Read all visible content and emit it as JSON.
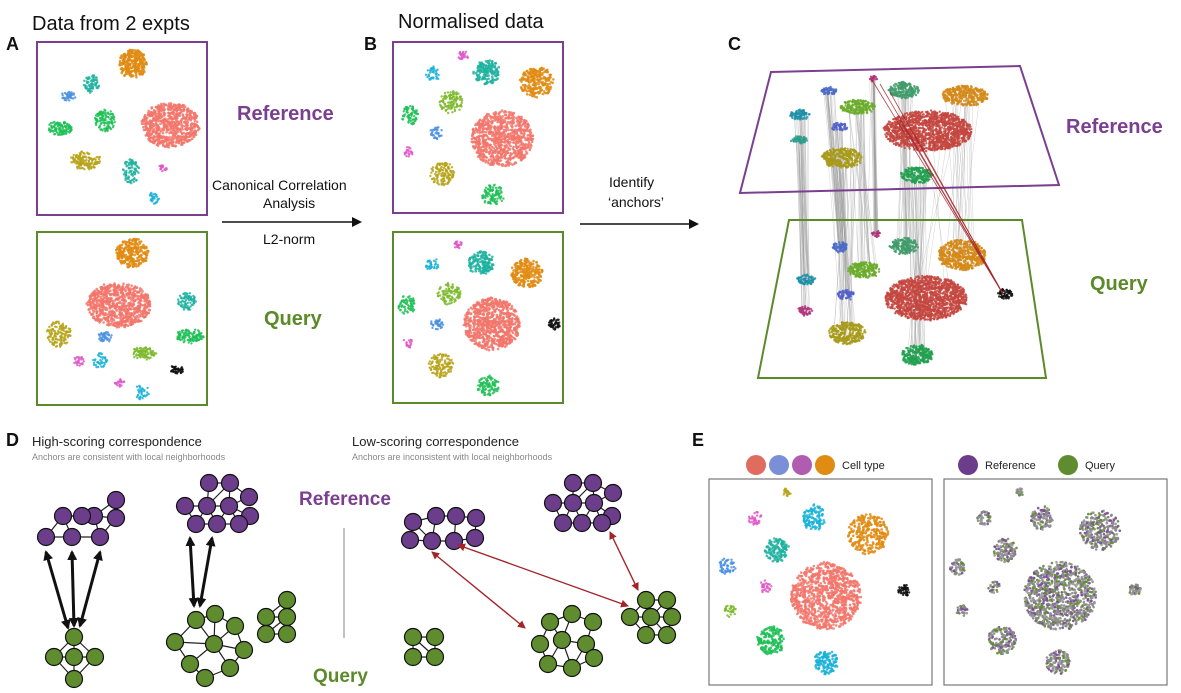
{
  "panel_letters": {
    "a": "A",
    "b": "B",
    "c": "C",
    "d": "D",
    "e": "E"
  },
  "panel_a": {
    "title": "Data from 2 expts"
  },
  "panel_b": {
    "title": "Normalised data"
  },
  "arrow_1": {
    "line1": "Canonical Correlation",
    "line2": "Analysis",
    "line3": "L2-norm"
  },
  "arrow_2": {
    "line1": "Identify",
    "line2": "‘anchors’"
  },
  "labels": {
    "reference": "Reference",
    "query": "Query"
  },
  "panel_d": {
    "high_title": "High-scoring correspondence",
    "high_sub": "Anchors are consistent with local neighborhoods",
    "low_title": "Low-scoring correspondence",
    "low_sub": "Anchors are inconsistent with local neighborhoods",
    "reference": "Reference",
    "query": "Query"
  },
  "panel_e": {
    "legend_celltype": "Cell type",
    "legend_reference": "Reference",
    "legend_query": "Query"
  },
  "colors": {
    "reference": "#7a3f8f",
    "query": "#5c8a2a",
    "node_ref": "#6b3d8a",
    "node_query": "#5e8c2e",
    "anchor_bad": "#a3252a",
    "salmon": "#f2766b",
    "orange": "#e08b12",
    "teal": "#1fb1a0",
    "green": "#1fbf56",
    "olive": "#b7a31a",
    "blue": "#4a90e0",
    "cyan": "#1ab2d8",
    "pink": "#e057c8",
    "lime": "#7cb92c"
  }
}
